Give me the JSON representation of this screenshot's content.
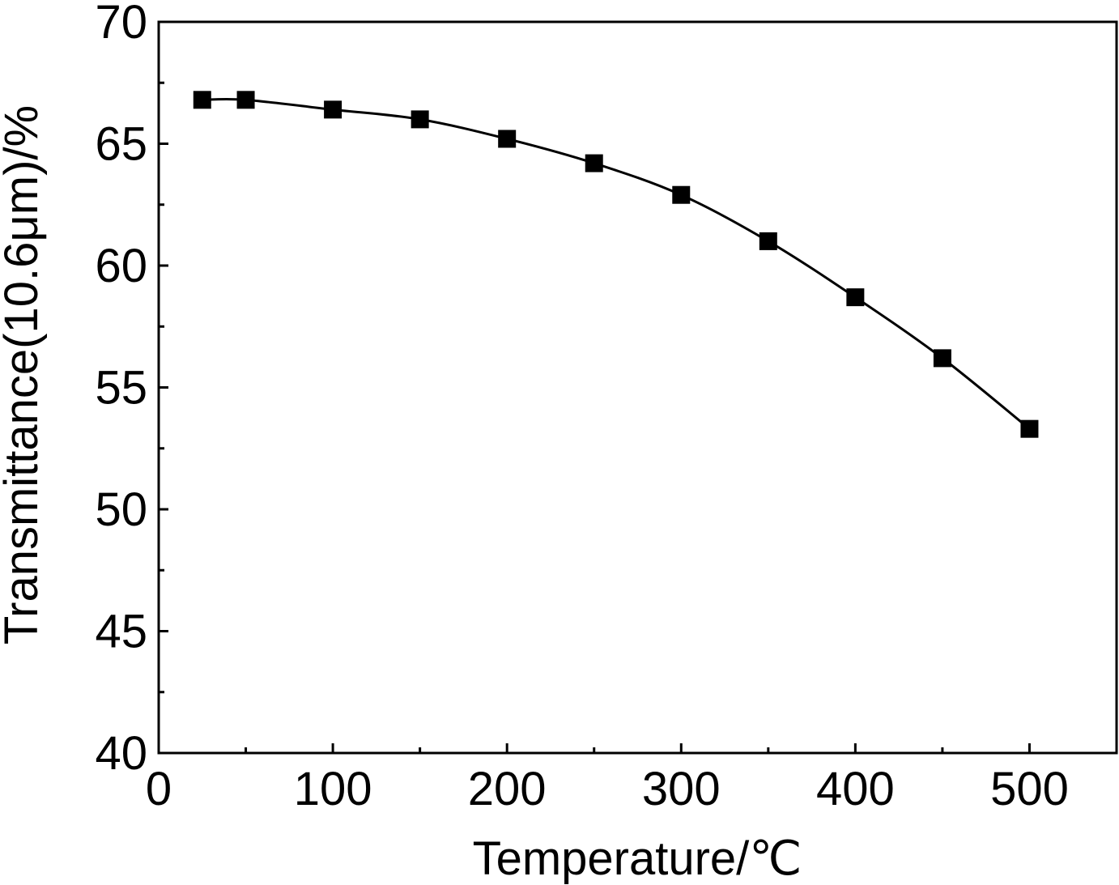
{
  "chart_data": {
    "type": "line",
    "title": "",
    "xlabel": "Temperature/℃",
    "ylabel": "Transmittance(10.6μm)/%",
    "xlim": [
      0,
      550
    ],
    "ylim": [
      40,
      70
    ],
    "x_ticks": [
      0,
      100,
      200,
      300,
      400,
      500
    ],
    "y_ticks": [
      40,
      45,
      50,
      55,
      60,
      65,
      70
    ],
    "x_tick_labels": [
      "0",
      "100",
      "200",
      "300",
      "400",
      "500"
    ],
    "y_tick_labels": [
      "40",
      "45",
      "50",
      "55",
      "60",
      "65",
      "70"
    ],
    "grid": false,
    "marker": "square",
    "color": "#000000",
    "series": [
      {
        "x": [
          25,
          50,
          100,
          150,
          200,
          250,
          300,
          350,
          400,
          450,
          500
        ],
        "y": [
          66.8,
          66.8,
          66.4,
          66.0,
          65.2,
          64.2,
          62.9,
          61.0,
          58.7,
          56.2,
          53.3
        ]
      }
    ]
  }
}
